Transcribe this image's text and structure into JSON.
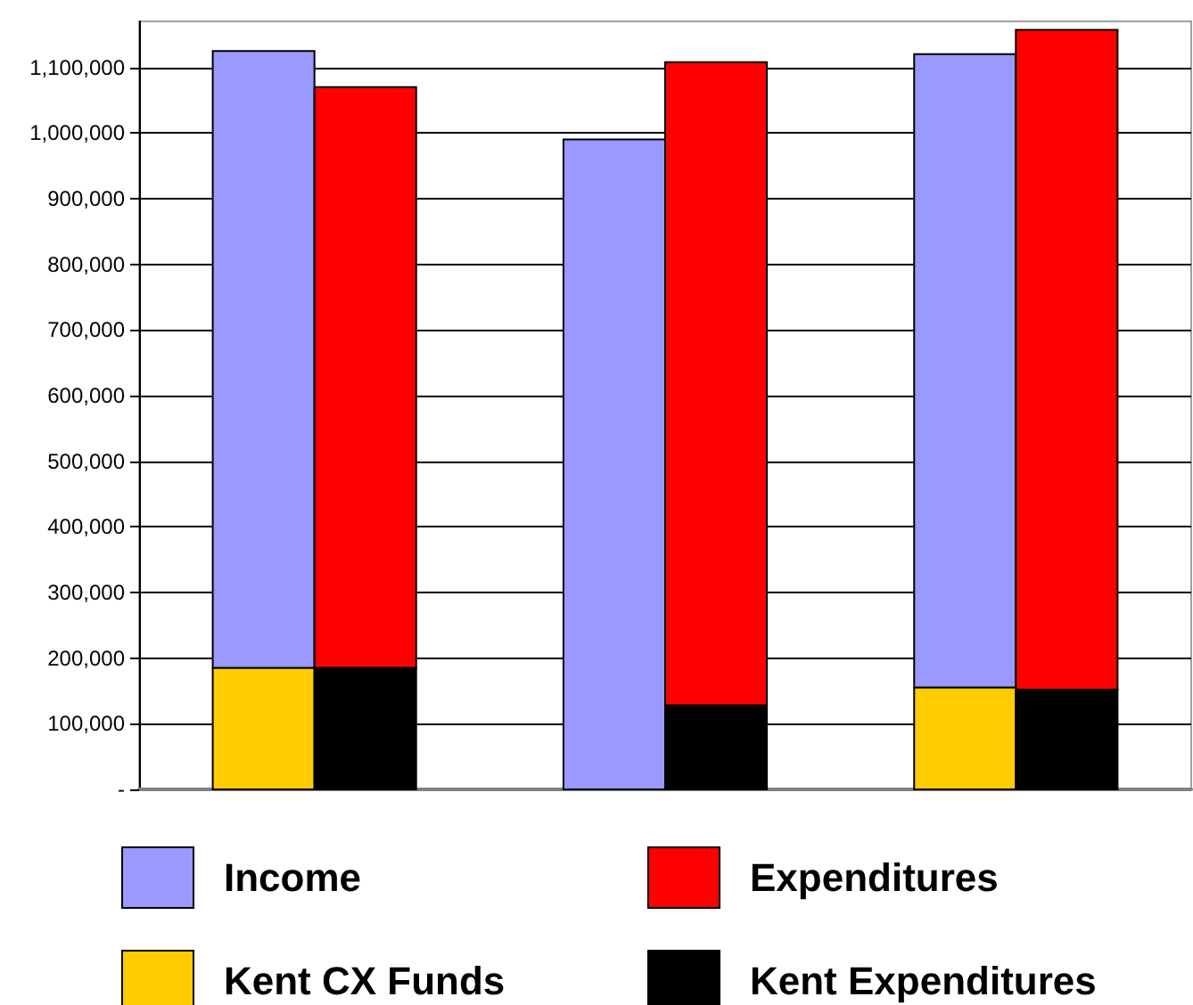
{
  "chart_data": {
    "type": "bar",
    "categories": [
      null,
      null,
      null
    ],
    "series": [
      {
        "name": "Income",
        "color": "#9999ff",
        "values": [
          940000,
          990000,
          965000
        ],
        "base": [
          185000,
          0,
          155000
        ]
      },
      {
        "name": "Expenditures",
        "color": "#ff0000",
        "values": [
          885000,
          980000,
          1005000
        ],
        "base": [
          185000,
          128000,
          152000
        ]
      },
      {
        "name": "Kent CX Funds",
        "color": "#ffcc00",
        "values": [
          185000,
          null,
          155000
        ]
      },
      {
        "name": "Kent Expenditures",
        "color": "#000000",
        "values": [
          185000,
          128000,
          152000
        ]
      }
    ],
    "ylim": [
      0,
      1170000
    ],
    "yticks": [
      {
        "value": 0,
        "label": "-"
      },
      {
        "value": 100000,
        "label": "100,000"
      },
      {
        "value": 200000,
        "label": "200,000"
      },
      {
        "value": 300000,
        "label": "300,000"
      },
      {
        "value": 400000,
        "label": "400,000"
      },
      {
        "value": 500000,
        "label": "500,000"
      },
      {
        "value": 600000,
        "label": "600,000"
      },
      {
        "value": 700000,
        "label": "700,000"
      },
      {
        "value": 800000,
        "label": "800,000"
      },
      {
        "value": 900000,
        "label": "900,000"
      },
      {
        "value": 1000000,
        "label": "1,000,000"
      },
      {
        "value": 1100000,
        "label": "1,100,000"
      }
    ],
    "grid": "y",
    "legend": "bottom",
    "tick_labels": "y"
  }
}
